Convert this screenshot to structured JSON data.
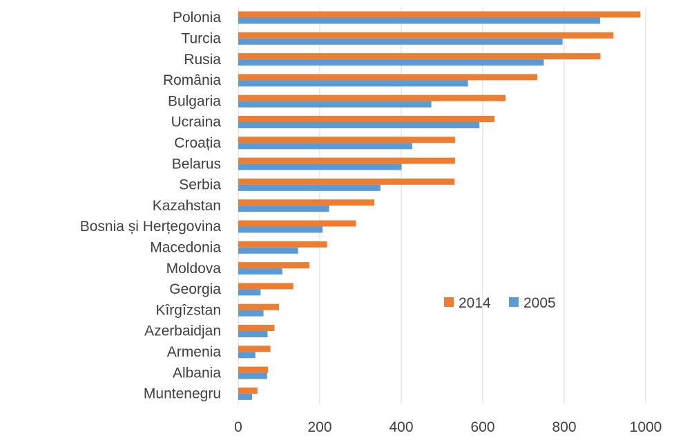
{
  "chart_data": {
    "type": "bar",
    "orientation": "horizontal",
    "categories": [
      "Polonia",
      "Turcia",
      "Rusia",
      "România",
      "Bulgaria",
      "Ucraina",
      "Croația",
      "Belarus",
      "Serbia",
      "Kazahstan",
      "Bosnia și Herțegovina",
      "Macedonia",
      "Moldova",
      "Georgia",
      "Kîrgîzstan",
      "Azerbaidjan",
      "Armenia",
      "Albania",
      "Muntenegru"
    ],
    "series": [
      {
        "name": "2014",
        "color": "#ed7d31",
        "values": [
          987,
          921,
          889,
          734,
          656,
          629,
          532,
          532,
          531,
          334,
          289,
          218,
          175,
          135,
          100,
          89,
          79,
          73,
          47
        ]
      },
      {
        "name": "2005",
        "color": "#5b9bd5",
        "values": [
          888,
          796,
          750,
          564,
          474,
          592,
          427,
          401,
          349,
          223,
          207,
          147,
          108,
          55,
          62,
          72,
          42,
          71,
          34
        ]
      }
    ],
    "xlim": [
      0,
      1000
    ],
    "xticks": [
      "0",
      "200",
      "400",
      "600",
      "800",
      "1000"
    ],
    "grid": true,
    "legend_position": "right-middle"
  }
}
